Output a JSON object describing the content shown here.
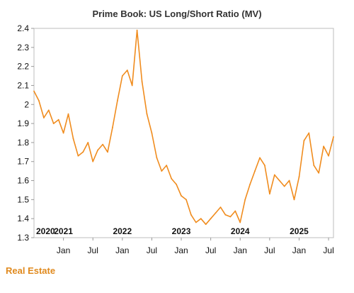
{
  "chart_data": {
    "type": "line",
    "title": "Prime Book: US Long/Short Ratio (MV)",
    "xlabel": "",
    "ylabel": "",
    "ylim": [
      1.3,
      2.4
    ],
    "y_ticks": [
      "1.3",
      "1.4",
      "1.5",
      "1.6",
      "1.7",
      "1.8",
      "1.9",
      "2",
      "2.1",
      "2.2",
      "2.3",
      "2.4"
    ],
    "xlim": [
      "2020-07",
      "2025-08"
    ],
    "x_ticks": [
      {
        "x": "2021-01",
        "label": "Jan"
      },
      {
        "x": "2021-07",
        "label": "Jul"
      },
      {
        "x": "2022-01",
        "label": "Jan"
      },
      {
        "x": "2022-07",
        "label": "Jul"
      },
      {
        "x": "2023-01",
        "label": "Jan"
      },
      {
        "x": "2023-07",
        "label": "Jul"
      },
      {
        "x": "2024-01",
        "label": "Jan"
      },
      {
        "x": "2024-07",
        "label": "Jul"
      },
      {
        "x": "2025-01",
        "label": "Jan"
      },
      {
        "x": "2025-07",
        "label": "Jul"
      }
    ],
    "year_labels": [
      {
        "x": "2020-07",
        "label": "2020"
      },
      {
        "x": "2021-01",
        "label": "2021"
      },
      {
        "x": "2022-01",
        "label": "2022"
      },
      {
        "x": "2023-01",
        "label": "2023"
      },
      {
        "x": "2024-01",
        "label": "2024"
      },
      {
        "x": "2025-01",
        "label": "2025"
      }
    ],
    "grid": false,
    "series": [
      {
        "color": "#f08c1e",
        "points": [
          [
            "2020-07",
            2.07
          ],
          [
            "2020-08",
            2.02
          ],
          [
            "2020-09",
            1.93
          ],
          [
            "2020-10",
            1.97
          ],
          [
            "2020-11",
            1.9
          ],
          [
            "2020-12",
            1.92
          ],
          [
            "2021-01",
            1.85
          ],
          [
            "2021-02",
            1.95
          ],
          [
            "2021-03",
            1.82
          ],
          [
            "2021-04",
            1.73
          ],
          [
            "2021-05",
            1.75
          ],
          [
            "2021-06",
            1.8
          ],
          [
            "2021-07",
            1.7
          ],
          [
            "2021-08",
            1.76
          ],
          [
            "2021-09",
            1.79
          ],
          [
            "2021-10",
            1.75
          ],
          [
            "2021-11",
            1.88
          ],
          [
            "2021-12",
            2.02
          ],
          [
            "2022-01",
            2.15
          ],
          [
            "2022-02",
            2.18
          ],
          [
            "2022-03",
            2.1
          ],
          [
            "2022-04",
            2.39
          ],
          [
            "2022-05",
            2.12
          ],
          [
            "2022-06",
            1.95
          ],
          [
            "2022-07",
            1.85
          ],
          [
            "2022-08",
            1.72
          ],
          [
            "2022-09",
            1.65
          ],
          [
            "2022-10",
            1.68
          ],
          [
            "2022-11",
            1.61
          ],
          [
            "2022-12",
            1.58
          ],
          [
            "2023-01",
            1.52
          ],
          [
            "2023-02",
            1.5
          ],
          [
            "2023-03",
            1.42
          ],
          [
            "2023-04",
            1.38
          ],
          [
            "2023-05",
            1.4
          ],
          [
            "2023-06",
            1.37
          ],
          [
            "2023-07",
            1.4
          ],
          [
            "2023-08",
            1.43
          ],
          [
            "2023-09",
            1.46
          ],
          [
            "2023-10",
            1.42
          ],
          [
            "2023-11",
            1.41
          ],
          [
            "2023-12",
            1.44
          ],
          [
            "2024-01",
            1.38
          ],
          [
            "2024-02",
            1.5
          ],
          [
            "2024-03",
            1.58
          ],
          [
            "2024-04",
            1.65
          ],
          [
            "2024-05",
            1.72
          ],
          [
            "2024-06",
            1.68
          ],
          [
            "2024-07",
            1.53
          ],
          [
            "2024-08",
            1.63
          ],
          [
            "2024-09",
            1.6
          ],
          [
            "2024-10",
            1.57
          ],
          [
            "2024-11",
            1.6
          ],
          [
            "2024-12",
            1.5
          ],
          [
            "2025-01",
            1.62
          ],
          [
            "2025-02",
            1.81
          ],
          [
            "2025-03",
            1.85
          ],
          [
            "2025-04",
            1.68
          ],
          [
            "2025-05",
            1.64
          ],
          [
            "2025-06",
            1.78
          ],
          [
            "2025-07",
            1.73
          ],
          [
            "2025-08",
            1.83
          ]
        ]
      }
    ]
  },
  "footer": {
    "label": "Real Estate"
  }
}
